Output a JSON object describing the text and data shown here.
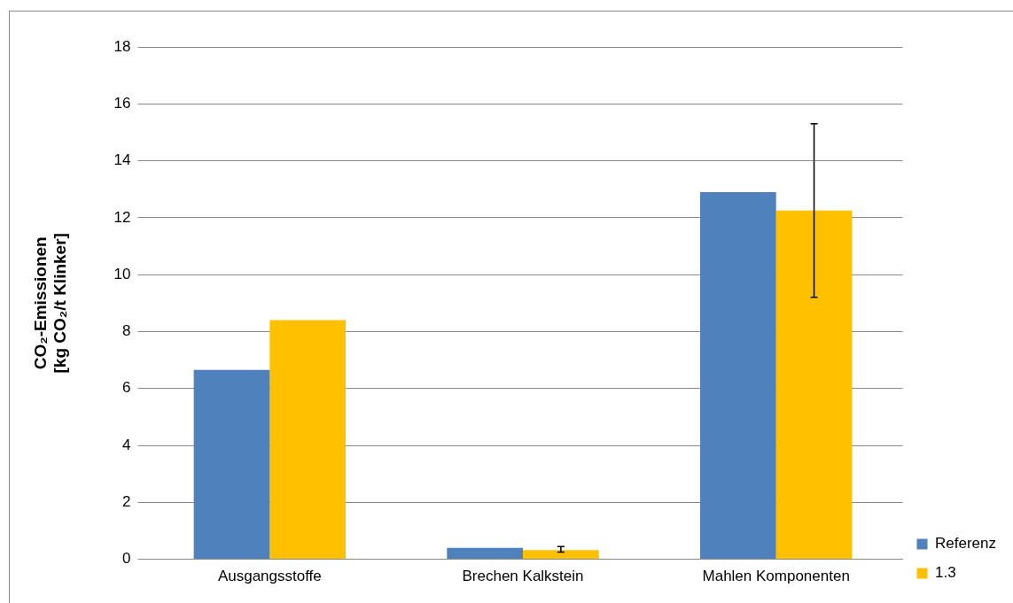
{
  "chart_data": {
    "type": "bar",
    "ylabel": "CO₂-Emissionen\n[kg CO₂/t Klinker]",
    "categories": [
      "Ausgangsstoffe",
      "Brechen Kalkstein",
      "Mahlen Komponenten"
    ],
    "series": [
      {
        "name": "Referenz",
        "color": "#4f81bd",
        "values": [
          6.65,
          0.4,
          12.9
        ]
      },
      {
        "name": "1.3",
        "color": "#ffc000",
        "values": [
          8.4,
          0.32,
          12.25
        ],
        "errors": [
          null,
          [
            0.25,
            0.45
          ],
          [
            9.2,
            15.3
          ]
        ]
      }
    ],
    "ylim": [
      0,
      18
    ],
    "yticks": [
      0,
      2,
      4,
      6,
      8,
      10,
      12,
      14,
      16,
      18
    ],
    "grid": "y",
    "legend": "bottom right"
  }
}
